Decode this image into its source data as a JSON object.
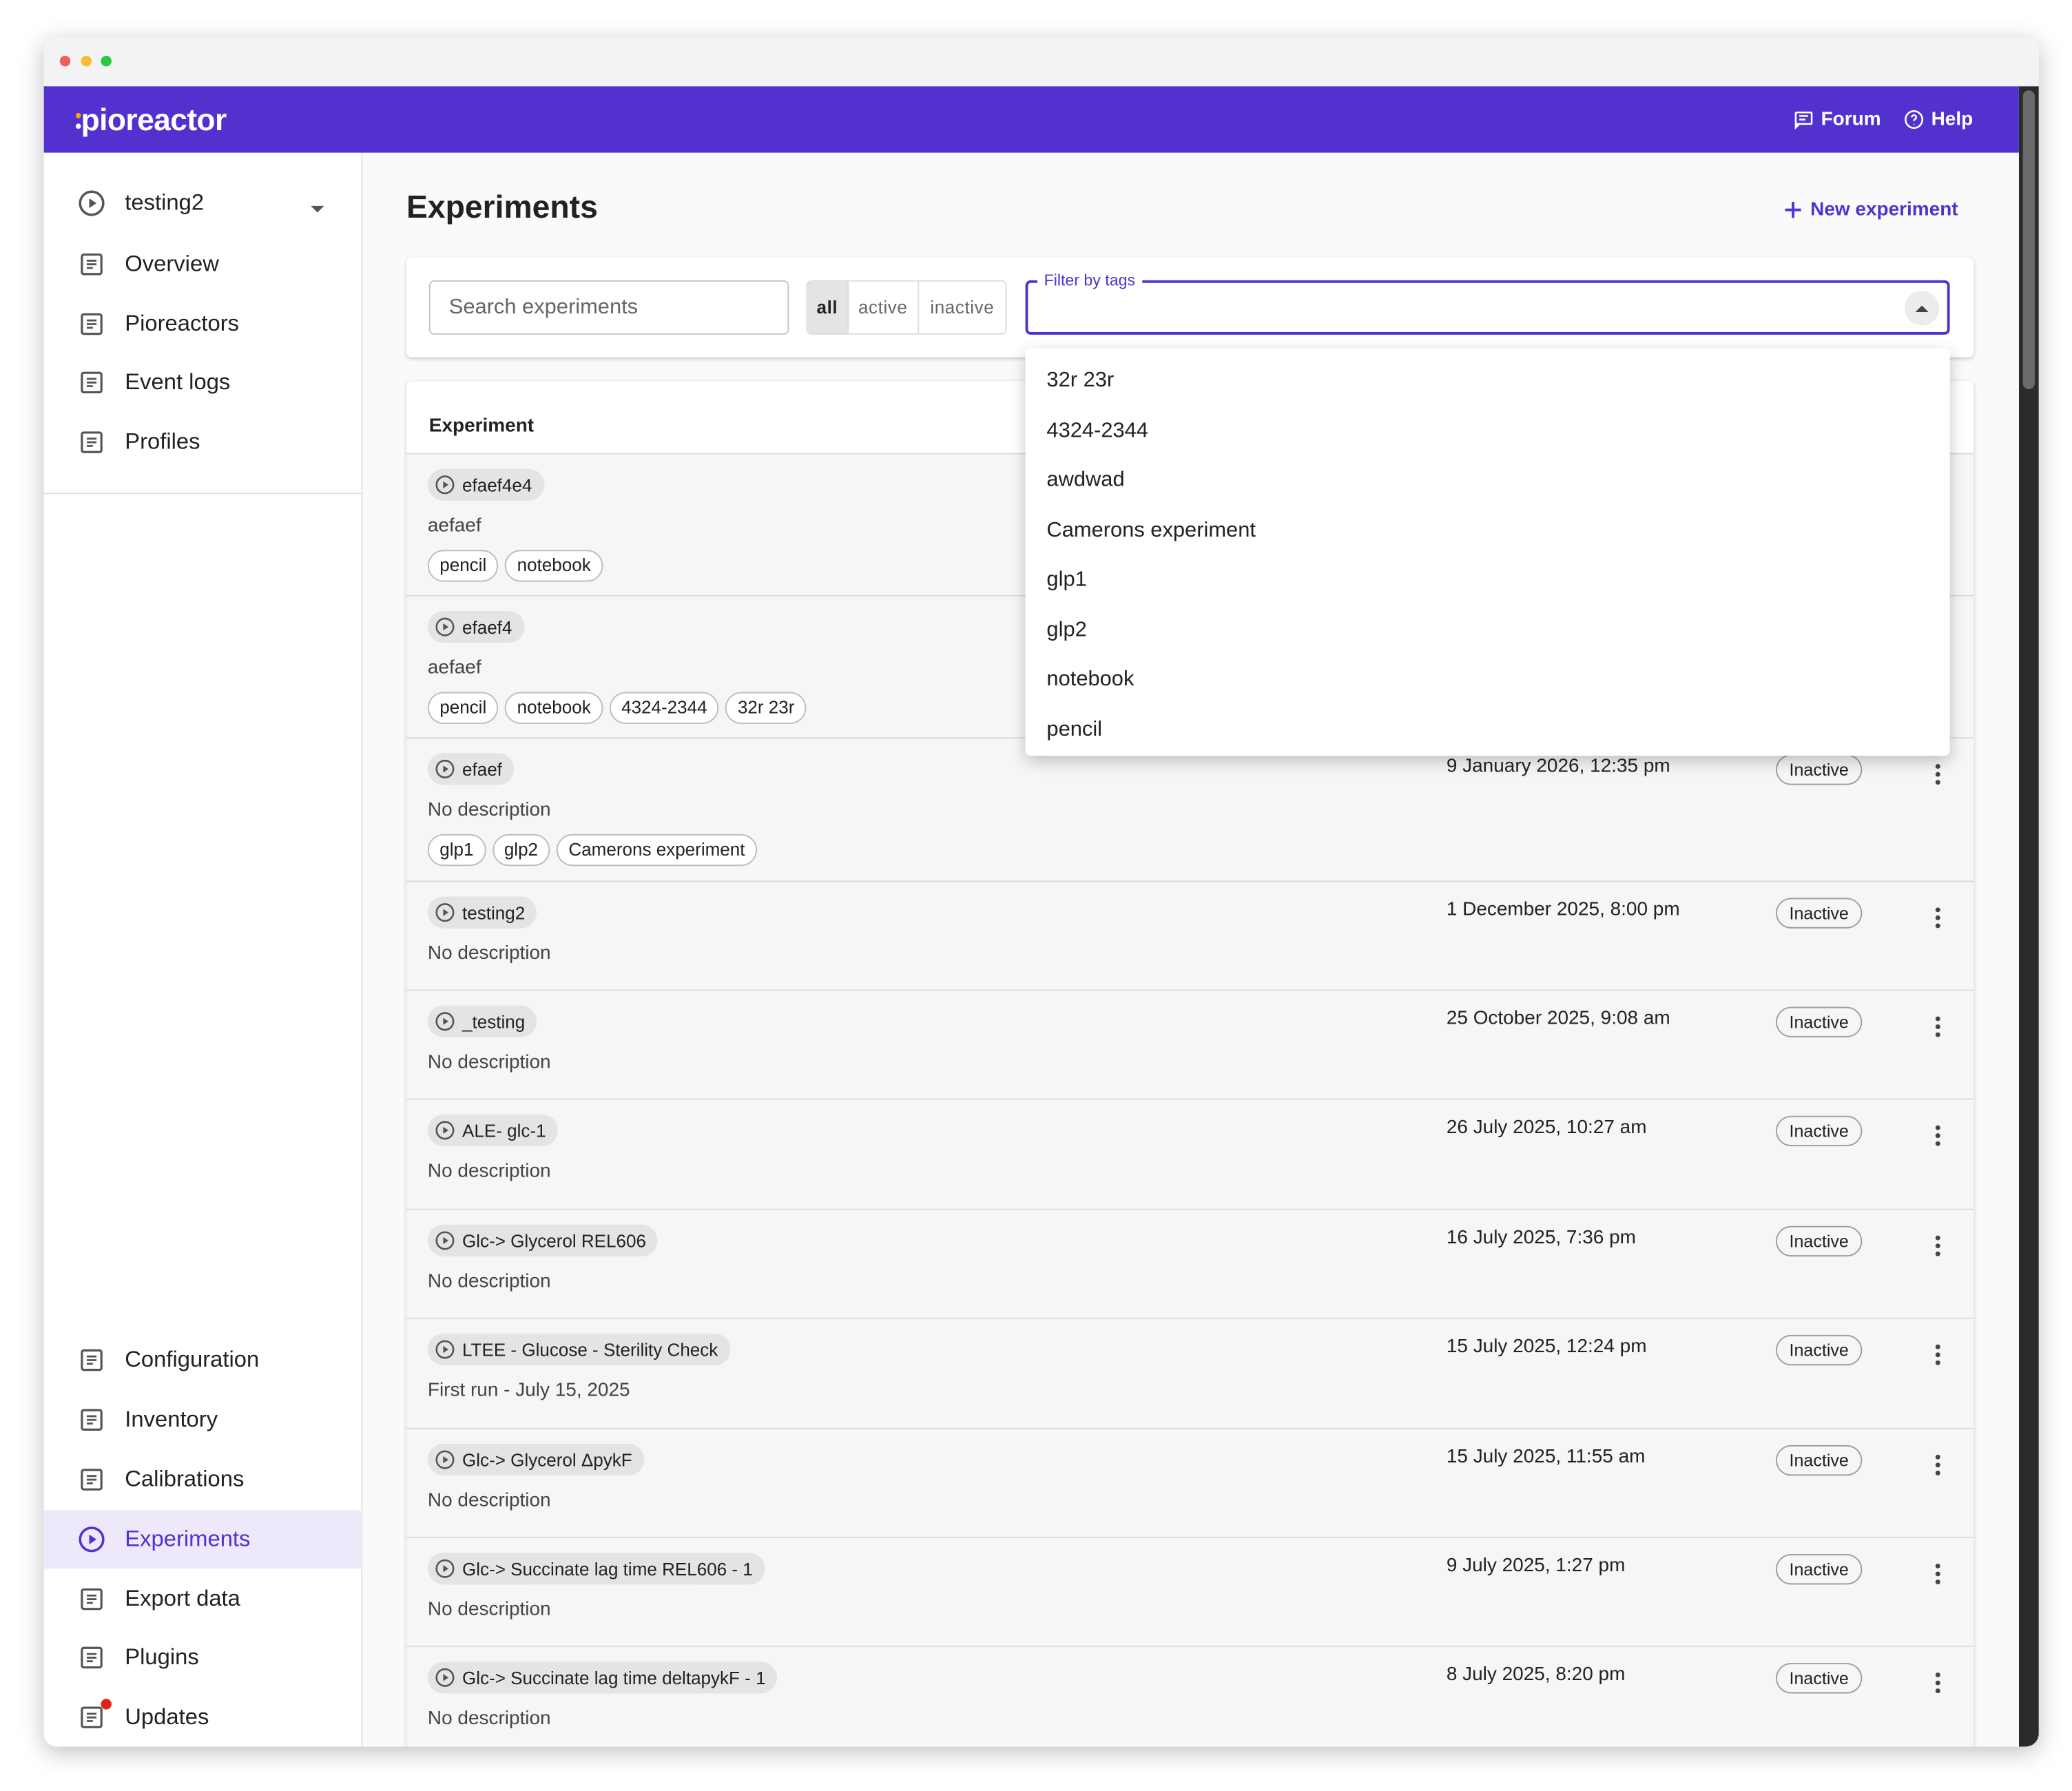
{
  "header": {
    "brand": "pioreactor",
    "links": [
      "Forum",
      "Help"
    ]
  },
  "sidebar": {
    "experiment_selector": "testing2",
    "top_items": [
      "Overview",
      "Pioreactors",
      "Event logs",
      "Profiles"
    ],
    "bottom_items": [
      "Configuration",
      "Inventory",
      "Calibrations",
      "Experiments",
      "Export data",
      "Plugins",
      "Updates"
    ]
  },
  "page": {
    "title": "Experiments",
    "new_button": "New experiment",
    "search_placeholder": "Search experiments",
    "status_filters": [
      "all",
      "active",
      "inactive"
    ],
    "tag_filter_label": "Filter by tags",
    "tag_options": [
      "32r 23r",
      "4324-2344",
      "awdwad",
      "Camerons experiment",
      "glp1",
      "glp2",
      "notebook",
      "pencil"
    ],
    "table_header": "Experiment"
  },
  "rows": [
    {
      "name": "efaef4e4",
      "description": "aefaef",
      "tags": [
        "pencil",
        "notebook"
      ]
    },
    {
      "name": "efaef4",
      "description": "aefaef",
      "tags": [
        "pencil",
        "notebook",
        "4324-2344",
        "32r 23r"
      ]
    },
    {
      "name": "efaef",
      "description": "No description",
      "tags": [
        "glp1",
        "glp2",
        "Camerons experiment"
      ],
      "date": "9 January 2026, 12:35 pm",
      "status": "Inactive"
    },
    {
      "name": "testing2",
      "description": "No description",
      "date": "1 December 2025, 8:00 pm",
      "status": "Inactive"
    },
    {
      "name": "_testing",
      "description": "No description",
      "date": "25 October 2025, 9:08 am",
      "status": "Inactive"
    },
    {
      "name": "ALE- glc-1",
      "description": "No description",
      "date": "26 July 2025, 10:27 am",
      "status": "Inactive"
    },
    {
      "name": "Glc-> Glycerol REL606",
      "description": "No description",
      "date": "16 July 2025, 7:36 pm",
      "status": "Inactive"
    },
    {
      "name": "LTEE - Glucose - Sterility Check",
      "description": "First run - July 15, 2025",
      "date": "15 July 2025, 12:24 pm",
      "status": "Inactive"
    },
    {
      "name": "Glc-> Glycerol ΔpykF",
      "description": "No description",
      "date": "15 July 2025, 11:55 am",
      "status": "Inactive"
    },
    {
      "name": "Glc-> Succinate lag time REL606 - 1",
      "description": "No description",
      "date": "9 July 2025, 1:27 pm",
      "status": "Inactive"
    },
    {
      "name": "Glc-> Succinate lag time deltapykF - 1",
      "description": "No description",
      "date": "8 July 2025, 8:20 pm",
      "status": "Inactive"
    }
  ]
}
